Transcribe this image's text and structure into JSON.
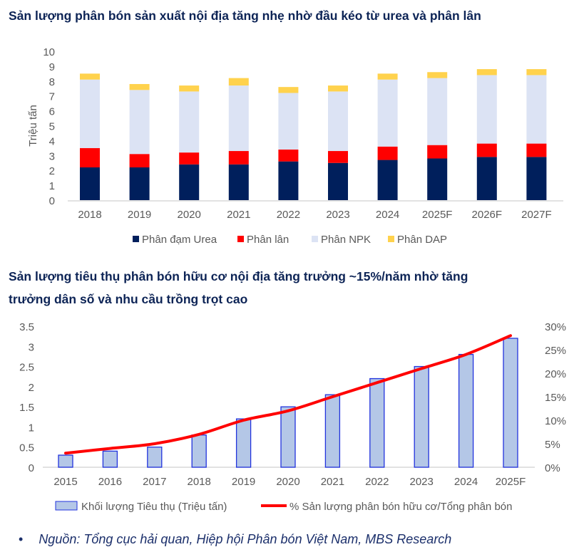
{
  "chart_data": [
    {
      "type": "bar",
      "stacked": true,
      "title": "Sản lượng phân bón sản xuất nội địa tăng nhẹ nhờ đầu kéo từ urea và phân lân",
      "ylabel": "Triệu tấn",
      "xlabel": "",
      "ylim": [
        0,
        10
      ],
      "yticks": [
        "0",
        "1",
        "2",
        "3",
        "4",
        "5",
        "6",
        "7",
        "8",
        "9",
        "10"
      ],
      "grid": false,
      "legend": "bottom",
      "categories": [
        "2018",
        "2019",
        "2020",
        "2021",
        "2022",
        "2023",
        "2024",
        "2025F",
        "2026F",
        "2027F"
      ],
      "series": [
        {
          "name": "Phân đạm Urea",
          "color": "#001f5c",
          "values": [
            2.2,
            2.2,
            2.4,
            2.4,
            2.6,
            2.5,
            2.7,
            2.8,
            2.9,
            2.9
          ]
        },
        {
          "name": "Phân lân",
          "color": "#ff0000",
          "values": [
            1.3,
            0.9,
            0.8,
            0.9,
            0.8,
            0.8,
            0.9,
            0.9,
            0.9,
            0.9
          ]
        },
        {
          "name": "Phân NPK",
          "color": "#dce3f4",
          "values": [
            4.6,
            4.3,
            4.1,
            4.4,
            3.8,
            4.0,
            4.5,
            4.5,
            4.6,
            4.6
          ]
        },
        {
          "name": "Phân DAP",
          "color": "#ffd24d",
          "values": [
            0.4,
            0.4,
            0.4,
            0.5,
            0.4,
            0.4,
            0.4,
            0.4,
            0.4,
            0.4
          ]
        }
      ]
    },
    {
      "type": "bar",
      "title": "Sản lượng tiêu thụ phân bón hữu cơ nội địa tăng trưởng ~15%/năm nhờ tăng trưởng dân số và nhu cầu trồng trọt cao",
      "title_lines": [
        "Sản lượng tiêu thụ phân bón hữu cơ nội địa tăng trưởng ~15%/năm nhờ tăng",
        "trưởng dân số và nhu cầu trồng trọt cao"
      ],
      "ylim": [
        0,
        3.5
      ],
      "yticks": [
        "0",
        "0.5",
        "1",
        "1.5",
        "2",
        "2.5",
        "3",
        "3.5"
      ],
      "y2lim": [
        0,
        30
      ],
      "y2ticks": [
        "0%",
        "5%",
        "10%",
        "15%",
        "20%",
        "25%",
        "30%"
      ],
      "grid": false,
      "legend": "bottom",
      "categories": [
        "2015",
        "2016",
        "2017",
        "2018",
        "2019",
        "2020",
        "2021",
        "2022",
        "2023",
        "2024",
        "2025F"
      ],
      "series": [
        {
          "name": "Khối lượng Tiêu thụ (Triệu tấn)",
          "type": "bar",
          "axis": "left",
          "color": "#b4c7e7",
          "edge": "#2233dd",
          "values": [
            0.3,
            0.4,
            0.5,
            0.8,
            1.2,
            1.5,
            1.8,
            2.2,
            2.5,
            2.8,
            3.2
          ]
        },
        {
          "name": "% Sản lượng phân bón hữu cơ/Tổng phân bón",
          "type": "line",
          "axis": "right",
          "color": "#ff0000",
          "values": [
            3,
            4,
            5,
            7,
            10,
            12,
            15,
            18,
            21,
            24,
            28
          ]
        }
      ]
    }
  ],
  "source_note": "Nguồn: Tổng cục hải quan, Hiệp hội Phân bón Việt Nam, MBS Research",
  "bullet": "•"
}
